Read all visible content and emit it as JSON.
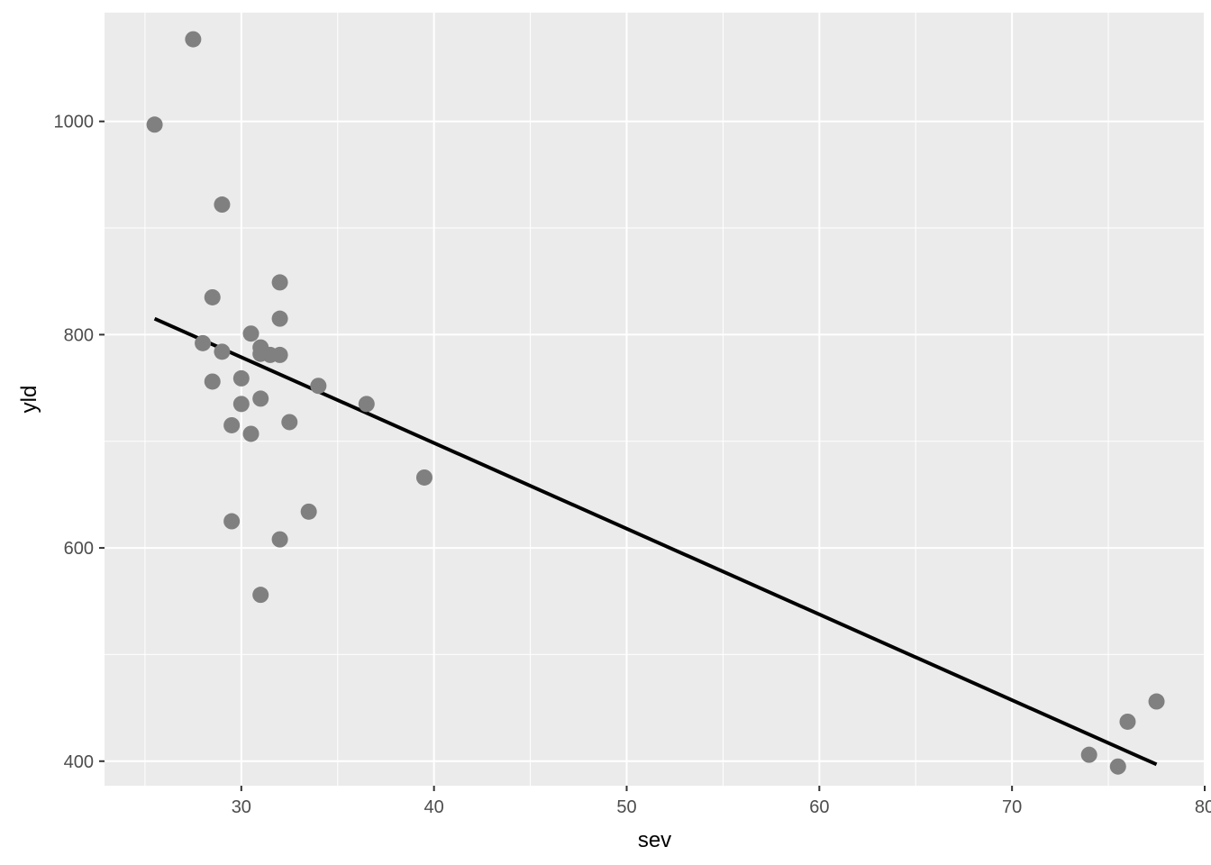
{
  "chart_data": {
    "type": "scatter",
    "title": "",
    "xlabel": "sev",
    "ylabel": "yld",
    "xlim": [
      22.9,
      80.0
    ],
    "ylim": [
      377,
      1102
    ],
    "x_ticks": [
      30,
      40,
      50,
      60,
      70,
      80
    ],
    "x_minor_ticks": [
      25,
      35,
      45,
      55,
      65,
      75
    ],
    "y_ticks": [
      400,
      600,
      800,
      1000
    ],
    "y_minor_ticks": [
      500,
      700,
      900
    ],
    "grid": true,
    "legend": "none",
    "colors": {
      "panel_background": "#ebebeb",
      "grid": "#ffffff",
      "points": "#808080",
      "fit_line": "#000000",
      "tick_text": "#4d4d4d"
    },
    "points": [
      {
        "x": 25.5,
        "y": 997
      },
      {
        "x": 27.5,
        "y": 1077
      },
      {
        "x": 28.0,
        "y": 792
      },
      {
        "x": 28.5,
        "y": 835
      },
      {
        "x": 28.5,
        "y": 756
      },
      {
        "x": 29.0,
        "y": 922
      },
      {
        "x": 29.0,
        "y": 784
      },
      {
        "x": 29.5,
        "y": 715
      },
      {
        "x": 29.5,
        "y": 625
      },
      {
        "x": 30.0,
        "y": 759
      },
      {
        "x": 30.0,
        "y": 735
      },
      {
        "x": 30.5,
        "y": 801
      },
      {
        "x": 30.5,
        "y": 707
      },
      {
        "x": 31.0,
        "y": 788
      },
      {
        "x": 31.0,
        "y": 782
      },
      {
        "x": 31.0,
        "y": 740
      },
      {
        "x": 31.0,
        "y": 556
      },
      {
        "x": 31.5,
        "y": 781
      },
      {
        "x": 32.0,
        "y": 849
      },
      {
        "x": 32.0,
        "y": 815
      },
      {
        "x": 32.0,
        "y": 781
      },
      {
        "x": 32.0,
        "y": 608
      },
      {
        "x": 32.5,
        "y": 718
      },
      {
        "x": 33.5,
        "y": 634
      },
      {
        "x": 34.0,
        "y": 752
      },
      {
        "x": 36.5,
        "y": 735
      },
      {
        "x": 39.5,
        "y": 666
      },
      {
        "x": 74.0,
        "y": 406
      },
      {
        "x": 75.5,
        "y": 395
      },
      {
        "x": 76.0,
        "y": 437
      },
      {
        "x": 77.5,
        "y": 456
      }
    ],
    "fit_line": {
      "method": "lm",
      "x": [
        25.5,
        77.5
      ],
      "y": [
        815,
        397
      ]
    }
  }
}
